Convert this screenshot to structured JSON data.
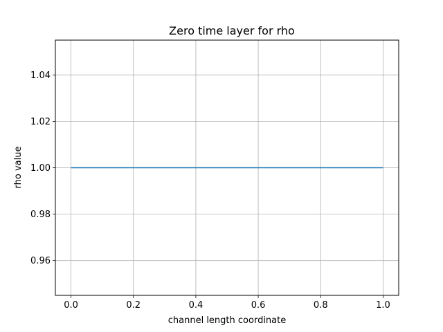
{
  "chart_data": {
    "type": "line",
    "title": "Zero time layer for rho",
    "xlabel": "channel length coordinate",
    "ylabel": "rho value",
    "xlim": [
      -0.05,
      1.05
    ],
    "ylim": [
      0.945,
      1.055
    ],
    "xticks": [
      0.0,
      0.2,
      0.4,
      0.6,
      0.8,
      1.0
    ],
    "xtick_labels": [
      "0.0",
      "0.2",
      "0.4",
      "0.6",
      "0.8",
      "1.0"
    ],
    "yticks": [
      0.96,
      0.98,
      1.0,
      1.02,
      1.04
    ],
    "ytick_labels": [
      "0.96",
      "0.98",
      "1.00",
      "1.02",
      "1.04"
    ],
    "grid": true,
    "series": [
      {
        "color": "#1f77b4",
        "x": [
          0.0,
          1.0
        ],
        "y": [
          1.0,
          1.0
        ]
      }
    ]
  }
}
